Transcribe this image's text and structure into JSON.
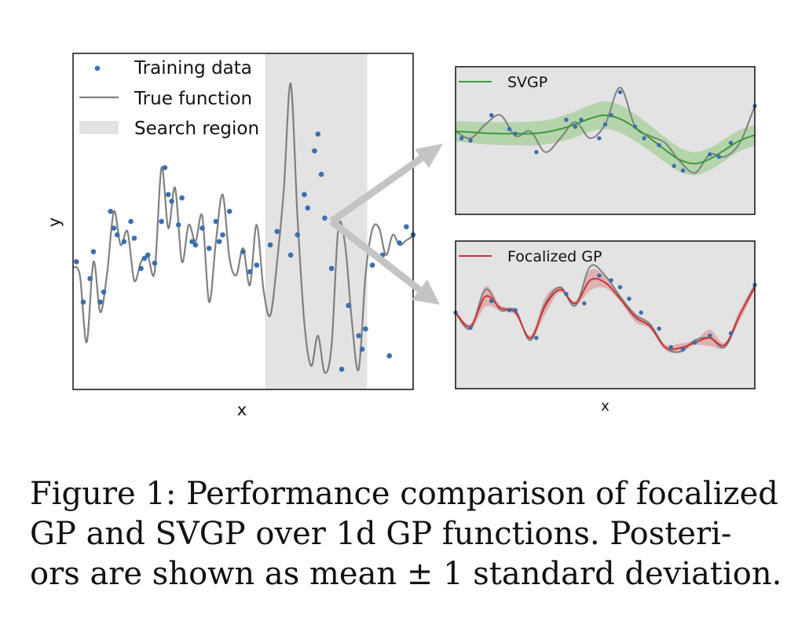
{
  "caption": {
    "line1": "Figure 1: Performance comparison of focalized",
    "line2": "GP and SVGP over 1d GP functions. Posteri-",
    "line3": "ors are shown as mean ± 1 standard deviation."
  },
  "colors": {
    "training_points": "#3a6fb0",
    "true_function": "#808080",
    "search_region": "#e3e3e3",
    "svgp": "#3a9a3a",
    "svgp_band": "#a6cf98",
    "focalized": "#c93535",
    "focalized_band": "#dca0a0",
    "arrow": "#c4c4c4"
  },
  "chart_data": [
    {
      "type": "line",
      "xlabel": "x",
      "ylabel": "y",
      "grid": false,
      "ticks": false,
      "legend_position": "top-left",
      "legend": [
        "Training data",
        "True function",
        "Search region"
      ],
      "search_region": [
        0.565,
        0.865
      ],
      "x": [
        0,
        0.02,
        0.04,
        0.06,
        0.08,
        0.1,
        0.12,
        0.14,
        0.16,
        0.18,
        0.2,
        0.22,
        0.24,
        0.26,
        0.28,
        0.3,
        0.32,
        0.34,
        0.36,
        0.38,
        0.4,
        0.42,
        0.44,
        0.46,
        0.48,
        0.5,
        0.52,
        0.54,
        0.56,
        0.58,
        0.6,
        0.62,
        0.64,
        0.66,
        0.68,
        0.7,
        0.72,
        0.74,
        0.76,
        0.78,
        0.8,
        0.82,
        0.84,
        0.86,
        0.88,
        0.9,
        0.92,
        0.94,
        0.96,
        0.98,
        1.0
      ],
      "y": [
        0.22,
        0.1,
        -0.9,
        0.3,
        -0.45,
        0.12,
        1.05,
        0.55,
        0.75,
        0.02,
        0.3,
        0.38,
        0.15,
        1.7,
        0.8,
        1.4,
        0.3,
        0.85,
        0.6,
        0.98,
        -0.3,
        0.6,
        1.3,
        0.35,
        0.1,
        0.5,
        -0.05,
        0.85,
        -0.12,
        -0.5,
        0.3,
        1.4,
        2.95,
        0.95,
        -0.6,
        -1.25,
        -0.8,
        -1.35,
        -0.95,
        0.8,
        0.55,
        -0.6,
        -1.3,
        0.1,
        0.78,
        0.8,
        0.4,
        0.7,
        0.55,
        0.62,
        0.68
      ],
      "points": [
        [
          0.01,
          0.3
        ],
        [
          0.03,
          -0.3
        ],
        [
          0.05,
          0.05
        ],
        [
          0.06,
          0.45
        ],
        [
          0.08,
          -0.3
        ],
        [
          0.09,
          -0.15
        ],
        [
          0.11,
          1.05
        ],
        [
          0.12,
          0.8
        ],
        [
          0.13,
          0.7
        ],
        [
          0.15,
          0.6
        ],
        [
          0.17,
          0.9
        ],
        [
          0.18,
          0.65
        ],
        [
          0.2,
          0.2
        ],
        [
          0.21,
          0.35
        ],
        [
          0.22,
          0.4
        ],
        [
          0.24,
          0.28
        ],
        [
          0.26,
          0.9
        ],
        [
          0.27,
          1.7
        ],
        [
          0.28,
          1.3
        ],
        [
          0.29,
          1.2
        ],
        [
          0.31,
          0.85
        ],
        [
          0.32,
          1.25
        ],
        [
          0.35,
          0.6
        ],
        [
          0.36,
          0.55
        ],
        [
          0.38,
          0.8
        ],
        [
          0.4,
          0.5
        ],
        [
          0.42,
          0.9
        ],
        [
          0.43,
          0.6
        ],
        [
          0.44,
          0.7
        ],
        [
          0.46,
          1.05
        ],
        [
          0.5,
          0.45
        ],
        [
          0.52,
          0.15
        ],
        [
          0.54,
          0.25
        ],
        [
          0.58,
          0.55
        ],
        [
          0.6,
          0.75
        ],
        [
          0.64,
          0.4
        ],
        [
          0.66,
          0.7
        ],
        [
          0.68,
          1.3
        ],
        [
          0.69,
          1.1
        ],
        [
          0.71,
          1.95
        ],
        [
          0.72,
          2.2
        ],
        [
          0.73,
          1.6
        ],
        [
          0.74,
          0.95
        ],
        [
          0.76,
          0.2
        ],
        [
          0.79,
          -1.3
        ],
        [
          0.81,
          -0.35
        ],
        [
          0.84,
          -0.8
        ],
        [
          0.85,
          -1.0
        ],
        [
          0.86,
          -0.7
        ],
        [
          0.88,
          0.25
        ],
        [
          0.91,
          0.4
        ],
        [
          0.93,
          -1.1
        ],
        [
          0.95,
          0.15
        ],
        [
          0.96,
          0.58
        ],
        [
          0.98,
          0.82
        ],
        [
          1.0,
          0.7
        ]
      ]
    },
    {
      "type": "line",
      "xlabel": "",
      "grid": false,
      "ticks": false,
      "legend_position": "top-left",
      "series": [
        {
          "name": "SVGP"
        }
      ],
      "x": [
        0,
        0.05,
        0.1,
        0.15,
        0.2,
        0.25,
        0.3,
        0.35,
        0.4,
        0.45,
        0.5,
        0.55,
        0.6,
        0.65,
        0.7,
        0.75,
        0.8,
        0.85,
        0.9,
        0.95,
        1.0
      ],
      "true_y": [
        0.2,
        0.05,
        0.35,
        0.55,
        0.1,
        0.2,
        -0.25,
        0.05,
        0.4,
        0.05,
        0.35,
        1.15,
        0.3,
        0.1,
        -0.05,
        -0.45,
        -0.7,
        -0.3,
        -0.35,
        -0.05,
        0.75
      ],
      "mean": [
        0.2,
        0.18,
        0.16,
        0.15,
        0.15,
        0.15,
        0.18,
        0.25,
        0.35,
        0.48,
        0.55,
        0.47,
        0.28,
        0.05,
        -0.2,
        -0.42,
        -0.5,
        -0.4,
        -0.2,
        0.0,
        0.12
      ],
      "std": [
        0.22,
        0.23,
        0.24,
        0.25,
        0.25,
        0.26,
        0.26,
        0.27,
        0.28,
        0.29,
        0.3,
        0.3,
        0.29,
        0.28,
        0.27,
        0.26,
        0.25,
        0.24,
        0.24,
        0.23,
        0.23
      ],
      "points": [
        [
          0.02,
          0.05
        ],
        [
          0.05,
          0.0
        ],
        [
          0.12,
          0.55
        ],
        [
          0.18,
          0.25
        ],
        [
          0.2,
          0.15
        ],
        [
          0.27,
          -0.25
        ],
        [
          0.37,
          0.45
        ],
        [
          0.4,
          0.3
        ],
        [
          0.42,
          0.45
        ],
        [
          0.48,
          0.05
        ],
        [
          0.5,
          0.35
        ],
        [
          0.52,
          0.55
        ],
        [
          0.55,
          1.05
        ],
        [
          0.6,
          0.3
        ],
        [
          0.63,
          0.05
        ],
        [
          0.68,
          -0.1
        ],
        [
          0.73,
          -0.55
        ],
        [
          0.76,
          -0.65
        ],
        [
          0.85,
          -0.3
        ],
        [
          0.88,
          -0.35
        ],
        [
          0.92,
          -0.05
        ],
        [
          1.0,
          0.75
        ]
      ]
    },
    {
      "type": "line",
      "xlabel": "x",
      "grid": false,
      "ticks": false,
      "legend_position": "top-left",
      "series": [
        {
          "name": "Focalized GP"
        }
      ],
      "x": [
        0,
        0.05,
        0.1,
        0.15,
        0.2,
        0.25,
        0.3,
        0.35,
        0.4,
        0.45,
        0.5,
        0.55,
        0.6,
        0.65,
        0.7,
        0.75,
        0.8,
        0.85,
        0.9,
        0.95,
        1.0
      ],
      "true_y": [
        0.05,
        -0.3,
        0.55,
        0.1,
        0.1,
        -0.55,
        0.25,
        0.6,
        0.2,
        1.05,
        0.85,
        0.4,
        0.0,
        -0.2,
        -0.7,
        -0.8,
        -0.55,
        -0.5,
        -0.7,
        0.0,
        0.65
      ],
      "mean": [
        0.05,
        -0.25,
        0.4,
        0.15,
        0.05,
        -0.5,
        0.2,
        0.55,
        0.25,
        0.75,
        0.7,
        0.35,
        -0.05,
        -0.25,
        -0.7,
        -0.72,
        -0.6,
        -0.5,
        -0.65,
        0.0,
        0.6
      ],
      "std": [
        0.05,
        0.06,
        0.22,
        0.06,
        0.05,
        0.05,
        0.18,
        0.06,
        0.05,
        0.22,
        0.12,
        0.06,
        0.1,
        0.06,
        0.06,
        0.1,
        0.05,
        0.18,
        0.05,
        0.12,
        0.06
      ],
      "points": [
        [
          0.0,
          0.05
        ],
        [
          0.05,
          -0.28
        ],
        [
          0.12,
          0.3
        ],
        [
          0.18,
          0.1
        ],
        [
          0.2,
          0.1
        ],
        [
          0.27,
          -0.5
        ],
        [
          0.37,
          0.45
        ],
        [
          0.43,
          0.25
        ],
        [
          0.48,
          0.85
        ],
        [
          0.52,
          0.75
        ],
        [
          0.55,
          0.6
        ],
        [
          0.58,
          0.35
        ],
        [
          0.62,
          0.05
        ],
        [
          0.68,
          -0.3
        ],
        [
          0.72,
          -0.7
        ],
        [
          0.76,
          -0.75
        ],
        [
          0.8,
          -0.6
        ],
        [
          0.85,
          -0.45
        ],
        [
          0.92,
          -0.4
        ],
        [
          1.0,
          0.65
        ]
      ]
    }
  ]
}
